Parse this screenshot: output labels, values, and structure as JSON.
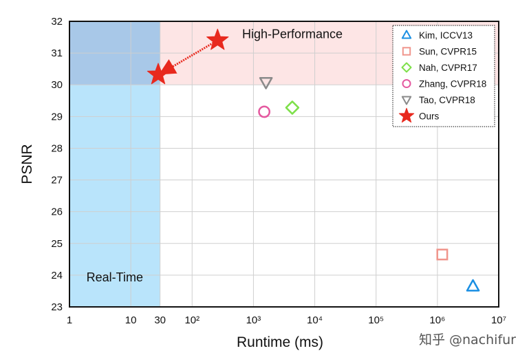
{
  "chart_data": {
    "type": "scatter",
    "xlabel": "Runtime (ms)",
    "ylabel": "PSNR",
    "xscale": "log",
    "xlim": [
      1,
      10000000
    ],
    "ylim": [
      23,
      32
    ],
    "x_ticks": [
      {
        "value": 1,
        "label": "1"
      },
      {
        "value": 10,
        "label": "10"
      },
      {
        "value": 30,
        "label": "30"
      },
      {
        "value": 100,
        "label": "10²"
      },
      {
        "value": 1000,
        "label": "10³"
      },
      {
        "value": 10000,
        "label": "10⁴"
      },
      {
        "value": 100000,
        "label": "10⁵"
      },
      {
        "value": 1000000,
        "label": "10⁶"
      },
      {
        "value": 10000000,
        "label": "10⁷"
      }
    ],
    "y_ticks": [
      23,
      24,
      25,
      26,
      27,
      28,
      29,
      30,
      31,
      32
    ],
    "grid": true,
    "legend_position": "top-right",
    "regions": [
      {
        "label": "Real-Time",
        "x_range": [
          1,
          30
        ],
        "y_range": [
          23,
          32
        ],
        "color": "#b9e4fb"
      },
      {
        "label": "High-Performance",
        "x_range": [
          1,
          10000000
        ],
        "y_range": [
          30,
          32
        ],
        "color": "#fde0e0"
      }
    ],
    "series": [
      {
        "name": "Kim, ICCV13",
        "marker": "triangle-up",
        "color": "#1a8fe3",
        "points": [
          {
            "x": 3800000,
            "y": 23.65
          }
        ]
      },
      {
        "name": "Sun, CVPR15",
        "marker": "square",
        "color": "#f0958c",
        "points": [
          {
            "x": 1200000,
            "y": 24.65
          }
        ]
      },
      {
        "name": "Nah, CVPR17",
        "marker": "diamond",
        "color": "#7ee04a",
        "points": [
          {
            "x": 4300,
            "y": 29.28
          }
        ]
      },
      {
        "name": "Zhang, CVPR18",
        "marker": "circle",
        "color": "#e4589f",
        "points": [
          {
            "x": 1500,
            "y": 29.15
          }
        ]
      },
      {
        "name": "Tao, CVPR18",
        "marker": "triangle-down",
        "color": "#8a8a8a",
        "points": [
          {
            "x": 1600,
            "y": 30.08
          }
        ]
      },
      {
        "name": "Ours",
        "marker": "star",
        "color": "#e8291e",
        "points": [
          {
            "x": 28,
            "y": 30.32
          },
          {
            "x": 260,
            "y": 31.4
          }
        ]
      }
    ],
    "annotations": [
      {
        "type": "arrow",
        "from": {
          "x": 260,
          "y": 31.4
        },
        "to": {
          "x": 28,
          "y": 30.32
        },
        "color": "#e8291e"
      }
    ]
  },
  "watermark": "知乎 @nachifur"
}
